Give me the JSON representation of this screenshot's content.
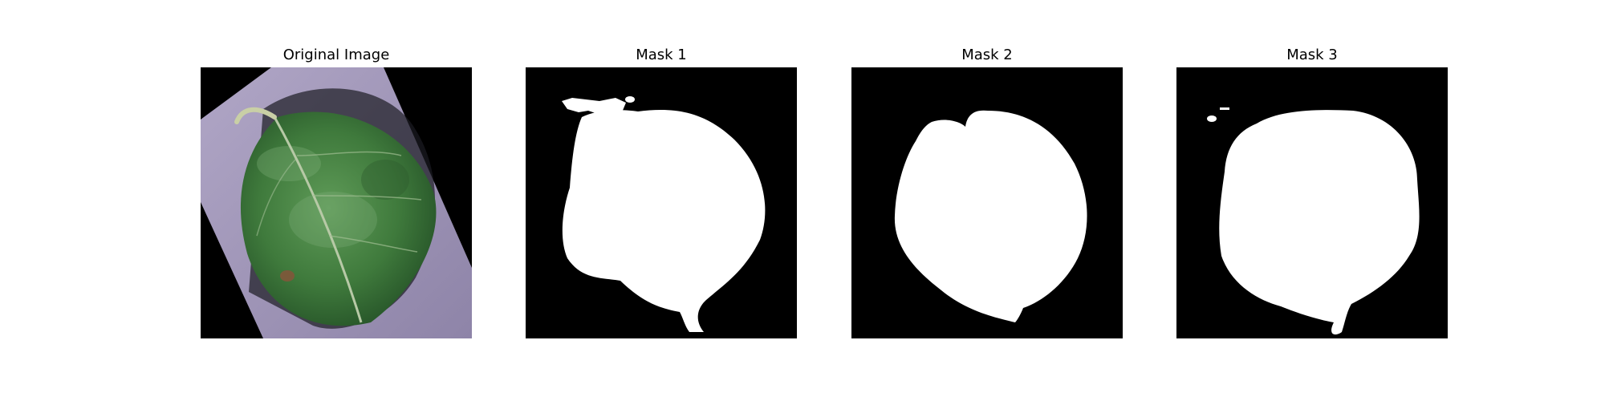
{
  "figure": {
    "panels": [
      {
        "title": "Original Image",
        "content": "leaf-photo"
      },
      {
        "title": "Mask 1",
        "content": "segmentation-mask"
      },
      {
        "title": "Mask 2",
        "content": "segmentation-mask"
      },
      {
        "title": "Mask 3",
        "content": "segmentation-mask"
      }
    ]
  },
  "colors": {
    "background": "#000000",
    "mask_foreground": "#ffffff",
    "leaf_green": "#3f7a3c",
    "surface_lavender": "#a59ab8"
  }
}
